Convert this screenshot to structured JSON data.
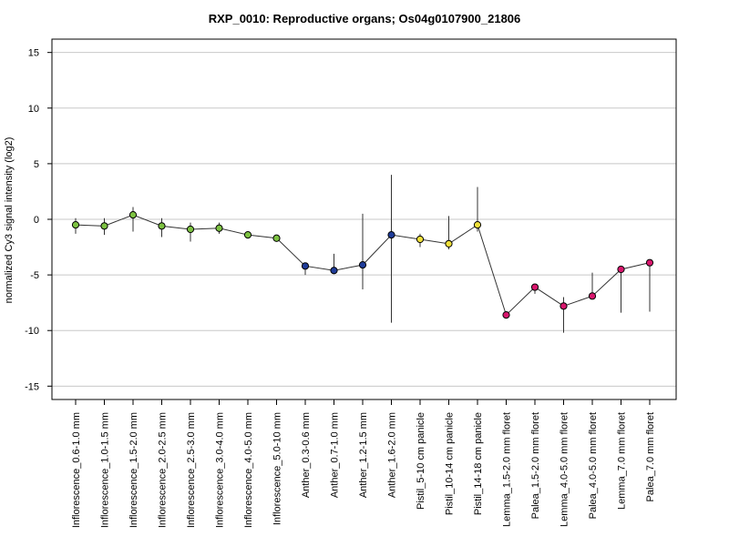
{
  "chart_data": {
    "type": "line",
    "title": "RXP_0010: Reproductive organs; Os04g0107900_21806",
    "xlabel": "",
    "ylabel": "normalized Cy3 signal intensity (log2)",
    "ylim": [
      -16.2,
      16.2
    ],
    "yticks": [
      -15,
      -10,
      -5,
      0,
      5,
      10,
      15
    ],
    "grid": true,
    "categories": [
      "Inflorescence_0.6-1.0 mm",
      "Inflorescence_1.0-1.5 mm",
      "Inflorescence_1.5-2.0 mm",
      "Inflorescence_2.0-2.5 mm",
      "Inflorescence_2.5-3.0 mm",
      "Inflorescence_3.0-4.0 mm",
      "Inflorescence_4.0-5.0 mm",
      "Inflorescence_5.0-10 mm",
      "Anther_0.3-0.6 mm",
      "Anther_0.7-1.0 mm",
      "Anther_1.2-1.5 mm",
      "Anther_1.6-2.0 mm",
      "Pistil_5-10 cm panicle",
      "Pistil_10-14 cm panicle",
      "Pistil_14-18 cm panicle",
      "Lemma_1.5-2.0 mm floret",
      "Palea_1.5-2.0 mm floret",
      "Lemma_4.0-5.0 mm floret",
      "Palea_4.0-5.0 mm floret",
      "Lemma_7.0 mm floret",
      "Palea_7.0 mm floret"
    ],
    "series": [
      {
        "values": [
          -0.5,
          -0.6,
          0.4,
          -0.6,
          -0.9,
          -0.8,
          -1.4,
          -1.7,
          -4.2,
          -4.6,
          -4.1,
          -1.4,
          -1.8,
          -2.2,
          -0.5,
          -8.6,
          -6.1,
          -7.8,
          -6.9,
          -4.5,
          -3.9
        ],
        "error_low": [
          -1.3,
          -1.4,
          -1.1,
          -1.6,
          -2.0,
          -1.3,
          -1.6,
          -1.9,
          -5.0,
          -4.6,
          -6.3,
          -9.3,
          -2.5,
          -2.7,
          -1.1,
          -8.6,
          -6.7,
          -10.2,
          -7.1,
          -8.4,
          -8.3
        ],
        "error_high": [
          0.1,
          0.1,
          1.1,
          0.1,
          -0.3,
          -0.3,
          -1.3,
          -1.6,
          -4.0,
          -3.1,
          0.5,
          4.0,
          -1.3,
          0.3,
          2.9,
          -8.5,
          -6.0,
          -7.0,
          -4.8,
          -4.4,
          -3.8
        ],
        "point_colors": [
          "#7dc242",
          "#7dc242",
          "#7dc242",
          "#7dc242",
          "#7dc242",
          "#7dc242",
          "#7dc242",
          "#7dc242",
          "#1f3c99",
          "#1f3c99",
          "#1f3c99",
          "#1f3c99",
          "#f0e03a",
          "#f0e03a",
          "#f0e03a",
          "#d8166d",
          "#d8166d",
          "#d8166d",
          "#d8166d",
          "#d8166d",
          "#d8166d"
        ]
      }
    ]
  },
  "colors": {
    "line": "#333333",
    "grid": "#c8c8c8",
    "frame": "#000000"
  }
}
